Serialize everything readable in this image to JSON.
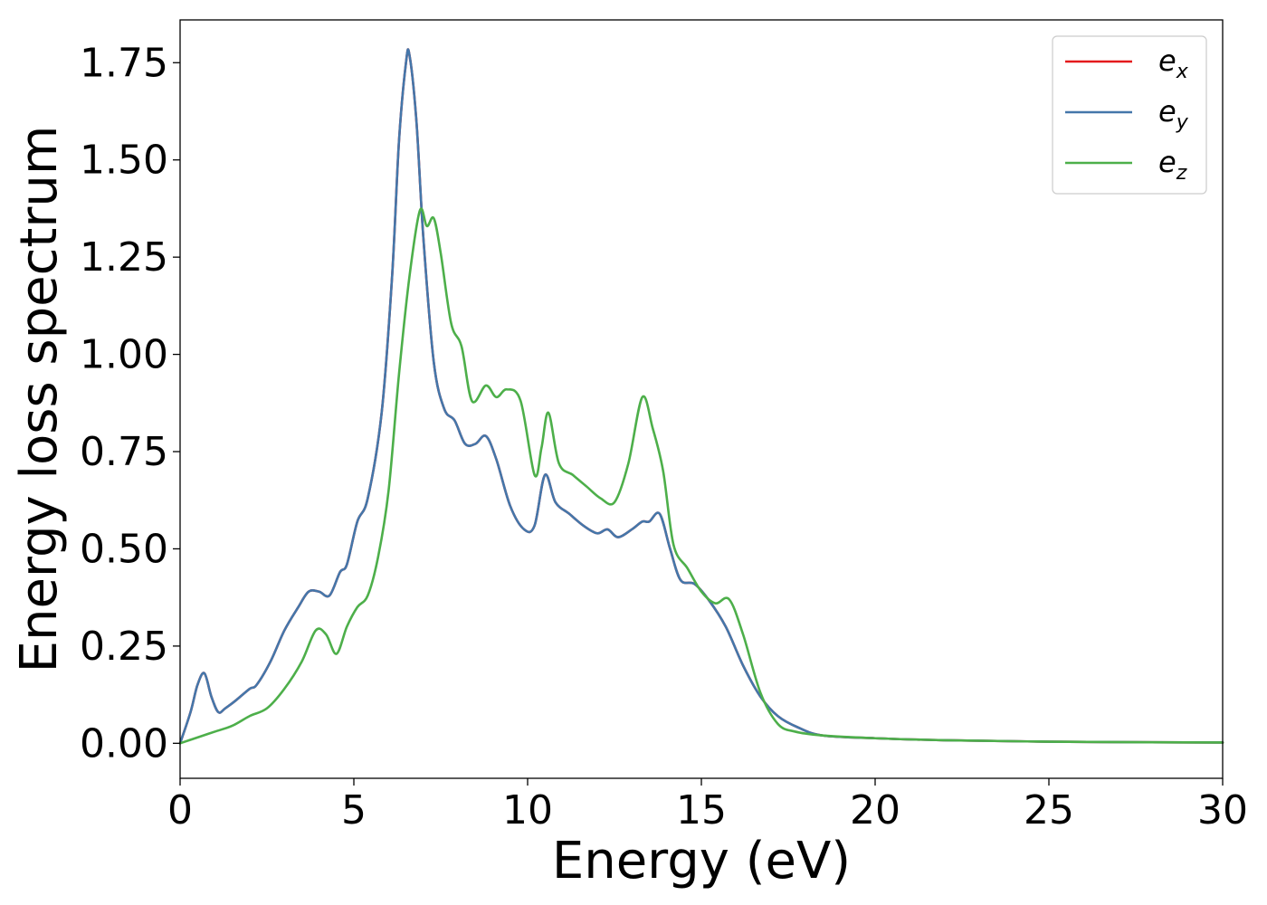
{
  "chart_data": {
    "type": "line",
    "title": "",
    "xlabel": "Energy (eV)",
    "ylabel": "Energy loss spectrum",
    "xlim": [
      0,
      30
    ],
    "ylim": [
      -0.09,
      1.86
    ],
    "grid": false,
    "legend_position": "top-right",
    "x_ticks": [
      0,
      5,
      10,
      15,
      20,
      25,
      30
    ],
    "x_tick_labels": [
      "0",
      "5",
      "10",
      "15",
      "20",
      "25",
      "30"
    ],
    "y_ticks": [
      0,
      0.25,
      0.5,
      0.75,
      1.0,
      1.25,
      1.5,
      1.75
    ],
    "y_tick_labels": [
      "0.00",
      "0.25",
      "0.50",
      "0.75",
      "1.00",
      "1.25",
      "1.50",
      "1.75"
    ],
    "series": [
      {
        "name": "e_x",
        "label_base": "e",
        "label_sub": "x",
        "color": "#e41a1c",
        "x": [
          0,
          0.3,
          0.5,
          0.7,
          0.9,
          1.1,
          1.3,
          1.6,
          2.0,
          2.2,
          2.6,
          3.0,
          3.4,
          3.7,
          4.0,
          4.3,
          4.6,
          4.8,
          5.1,
          5.4,
          5.8,
          6.1,
          6.3,
          6.5,
          6.6,
          6.8,
          7.0,
          7.3,
          7.6,
          7.9,
          8.2,
          8.5,
          8.8,
          9.1,
          9.5,
          9.9,
          10.2,
          10.5,
          10.8,
          11.2,
          11.6,
          12.0,
          12.3,
          12.6,
          13.0,
          13.3,
          13.5,
          13.8,
          14.1,
          14.4,
          14.8,
          15.2,
          15.7,
          16.2,
          16.7,
          17.2,
          17.8,
          18.5,
          20.0,
          22.0,
          25.0,
          30.0
        ],
        "y": [
          0.0,
          0.08,
          0.15,
          0.18,
          0.12,
          0.08,
          0.09,
          0.11,
          0.14,
          0.15,
          0.21,
          0.29,
          0.35,
          0.39,
          0.39,
          0.38,
          0.44,
          0.46,
          0.57,
          0.63,
          0.85,
          1.2,
          1.55,
          1.75,
          1.77,
          1.6,
          1.3,
          0.98,
          0.86,
          0.83,
          0.77,
          0.77,
          0.79,
          0.73,
          0.61,
          0.55,
          0.56,
          0.69,
          0.62,
          0.59,
          0.56,
          0.54,
          0.55,
          0.53,
          0.55,
          0.57,
          0.57,
          0.59,
          0.5,
          0.42,
          0.41,
          0.37,
          0.3,
          0.2,
          0.12,
          0.07,
          0.04,
          0.02,
          0.013,
          0.008,
          0.004,
          0.002
        ]
      },
      {
        "name": "e_y",
        "label_base": "e",
        "label_sub": "y",
        "color": "#4477aa",
        "x": [
          0,
          0.3,
          0.5,
          0.7,
          0.9,
          1.1,
          1.3,
          1.6,
          2.0,
          2.2,
          2.6,
          3.0,
          3.4,
          3.7,
          4.0,
          4.3,
          4.6,
          4.8,
          5.1,
          5.4,
          5.8,
          6.1,
          6.3,
          6.5,
          6.6,
          6.8,
          7.0,
          7.3,
          7.6,
          7.9,
          8.2,
          8.5,
          8.8,
          9.1,
          9.5,
          9.9,
          10.2,
          10.5,
          10.8,
          11.2,
          11.6,
          12.0,
          12.3,
          12.6,
          13.0,
          13.3,
          13.5,
          13.8,
          14.1,
          14.4,
          14.8,
          15.2,
          15.7,
          16.2,
          16.7,
          17.2,
          17.8,
          18.5,
          20.0,
          22.0,
          25.0,
          30.0
        ],
        "y": [
          0.0,
          0.08,
          0.15,
          0.18,
          0.12,
          0.08,
          0.09,
          0.11,
          0.14,
          0.15,
          0.21,
          0.29,
          0.35,
          0.39,
          0.39,
          0.38,
          0.44,
          0.46,
          0.57,
          0.63,
          0.85,
          1.2,
          1.55,
          1.75,
          1.77,
          1.6,
          1.3,
          0.98,
          0.86,
          0.83,
          0.77,
          0.77,
          0.79,
          0.73,
          0.61,
          0.55,
          0.56,
          0.69,
          0.62,
          0.59,
          0.56,
          0.54,
          0.55,
          0.53,
          0.55,
          0.57,
          0.57,
          0.59,
          0.5,
          0.42,
          0.41,
          0.37,
          0.3,
          0.2,
          0.12,
          0.07,
          0.04,
          0.02,
          0.013,
          0.008,
          0.004,
          0.002
        ]
      },
      {
        "name": "e_z",
        "label_base": "e",
        "label_sub": "z",
        "color": "#4daf4a",
        "x": [
          0,
          0.5,
          1.0,
          1.5,
          2.0,
          2.5,
          3.0,
          3.5,
          3.9,
          4.2,
          4.5,
          4.8,
          5.1,
          5.4,
          5.7,
          6.0,
          6.3,
          6.6,
          6.9,
          7.1,
          7.3,
          7.5,
          7.8,
          8.1,
          8.4,
          8.8,
          9.1,
          9.4,
          9.8,
          10.2,
          10.4,
          10.6,
          10.9,
          11.3,
          11.7,
          12.1,
          12.5,
          12.9,
          13.3,
          13.6,
          13.9,
          14.2,
          14.6,
          15.0,
          15.4,
          15.8,
          16.2,
          16.7,
          17.2,
          17.7,
          18.5,
          20.0,
          22.0,
          25.0,
          30.0
        ],
        "y": [
          0.0,
          0.015,
          0.03,
          0.045,
          0.07,
          0.09,
          0.14,
          0.21,
          0.29,
          0.28,
          0.23,
          0.3,
          0.35,
          0.38,
          0.48,
          0.65,
          0.95,
          1.2,
          1.37,
          1.33,
          1.35,
          1.26,
          1.08,
          1.02,
          0.88,
          0.92,
          0.89,
          0.91,
          0.88,
          0.69,
          0.76,
          0.85,
          0.72,
          0.69,
          0.66,
          0.63,
          0.62,
          0.72,
          0.89,
          0.81,
          0.7,
          0.51,
          0.45,
          0.39,
          0.36,
          0.37,
          0.28,
          0.13,
          0.05,
          0.03,
          0.02,
          0.013,
          0.008,
          0.004,
          0.002
        ]
      }
    ]
  }
}
